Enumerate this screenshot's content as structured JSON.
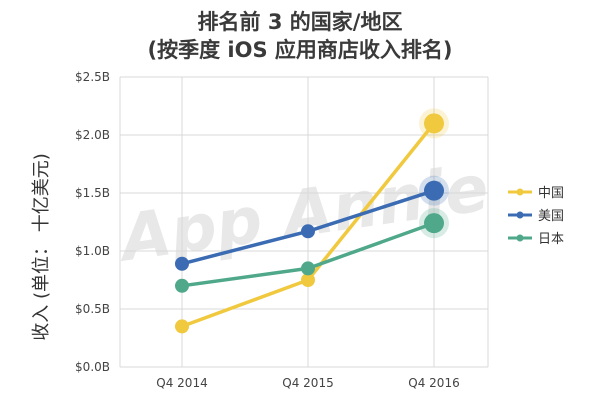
{
  "chart_data": {
    "type": "line",
    "title": "排名前 3 的国家/地区",
    "subtitle": "(按季度 iOS 应用商店收入排名)",
    "xlabel": "",
    "ylabel": "收入 (单位： 十亿美元)",
    "categories": [
      "Q4 2014",
      "Q4 2015",
      "Q4 2016"
    ],
    "ylim": [
      0,
      2.5
    ],
    "yticks": [
      "$0.0B",
      "$0.5B",
      "$1.0B",
      "$1.5B",
      "$2.0B",
      "$2.5B"
    ],
    "grid": true,
    "legend_position": "right",
    "watermark": "App Annie",
    "series": [
      {
        "name": "中国",
        "color": "#f0c93f",
        "values": [
          0.35,
          0.75,
          2.1
        ]
      },
      {
        "name": "美国",
        "color": "#3b6cb3",
        "values": [
          0.89,
          1.17,
          1.52
        ]
      },
      {
        "name": "日本",
        "color": "#4fa88a",
        "values": [
          0.7,
          0.85,
          1.24
        ]
      }
    ]
  }
}
